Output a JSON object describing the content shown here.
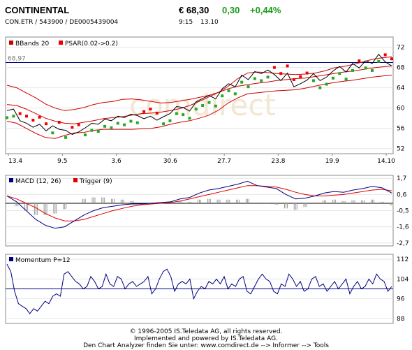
{
  "header": {
    "name": "CONTINENTAL",
    "price": "€ 68,30",
    "change_abs": "0,30",
    "change_pct": "+0,44%",
    "ids": "CON.ETR  /  543900  /  DE0005439004",
    "time": "9:15",
    "date": "13.10"
  },
  "footer": {
    "line1": "© 1996-2005 IS.Teledata AG, all rights reserved.",
    "line2": "Implemented and powered by IS.Teledata AG.",
    "line3": "Den Chart Analyzer finden Sie unter: www.comdirect.de --> Informer --> Tools"
  },
  "watermark": "comdirect",
  "colors": {
    "bbands": "#cc0000",
    "psar_up": "#22aa22",
    "psar_down": "#ee0000",
    "line": "#000000",
    "macd": "#000080",
    "trigger": "#dd0000",
    "momentum": "#000080",
    "hist": "#999999",
    "green": "#1a9a1a"
  },
  "chart_data": [
    {
      "type": "line",
      "legend": [
        "BBands 20",
        "PSAR(0.02->0.2)"
      ],
      "reference_label": "68,97",
      "reference_value": 68.97,
      "x_ticks": [
        "13.4",
        "9.5",
        "3.6",
        "30.6",
        "27.7",
        "23.8",
        "19.9",
        "14.10"
      ],
      "y_ticks": [
        52,
        56,
        60,
        64,
        68,
        72
      ],
      "ylim": [
        51,
        74
      ],
      "price": [
        59.5,
        59.8,
        57.5,
        57,
        56.2,
        56.8,
        55.5,
        56.5,
        55.8,
        55.6,
        54.8,
        55.3,
        56.1,
        57,
        56.8,
        57.8,
        57.5,
        58.4,
        58.1,
        58.8,
        58.5,
        57.9,
        58.4,
        57.6,
        58.3,
        58.9,
        60.3,
        60.1,
        59.4,
        61.2,
        61.9,
        62.5,
        61.8,
        63.8,
        64.8,
        64.2,
        66.5,
        65.6,
        67.2,
        66.8,
        67.5,
        66.6,
        65.4,
        66.9,
        64.2,
        64.8,
        65.5,
        66.8,
        65.4,
        66.1,
        67.3,
        68.2,
        67.1,
        68.8,
        67.9,
        69.3,
        68.8,
        70.6,
        69.1,
        68.3
      ],
      "upper_band": [
        64.5,
        64,
        63,
        62,
        60.8,
        60,
        59.5,
        59.7,
        60.1,
        60.7,
        61.1,
        61.3,
        61.7,
        61.8,
        61.6,
        61.3,
        61,
        61.1,
        61.4,
        61.7,
        62.1,
        62.5,
        63.1,
        64.3,
        65.8,
        66.9,
        67.1,
        67,
        66.8,
        66.7,
        66.6,
        66.7,
        66.9,
        67.3,
        67.9,
        68.2,
        68.6,
        69.1,
        69.6,
        69.9,
        70.1
      ],
      "middle_band": [
        60.7,
        60.5,
        59.8,
        58.9,
        58,
        57.4,
        57,
        56.9,
        57.2,
        57.5,
        57.9,
        58.1,
        58.3,
        58.6,
        58.9,
        59,
        59.2,
        59.5,
        59.9,
        60.5,
        61.3,
        62.2,
        63.1,
        63.8,
        64.3,
        64.6,
        64.9,
        65.1,
        65.4,
        65.6,
        65.8,
        65.9,
        66.2,
        66.5,
        66.8,
        67.1,
        67.3,
        67.6,
        67.9,
        68.1,
        68.3
      ],
      "lower_band": [
        57.4,
        57,
        56,
        55,
        54.2,
        54,
        54.6,
        55.1,
        55.2,
        55.6,
        55.8,
        55.8,
        55.8,
        55.8,
        55.9,
        56,
        56.3,
        56.8,
        57.2,
        57.5,
        58,
        58.6,
        59.6,
        61,
        62,
        62.8,
        63,
        63.2,
        63.4,
        63.5,
        63.6,
        63.9,
        64.3,
        64.7,
        65,
        65.3,
        65.5,
        65.8,
        66.1,
        66.3,
        66.5
      ]
    },
    {
      "type": "line",
      "legend": [
        "MACD (12, 26)",
        "Trigger (9)"
      ],
      "y_ticks": [
        1.7,
        0.6,
        -0.5,
        -1.6,
        -2.7
      ],
      "ylim": [
        -2.9,
        1.9
      ],
      "macd": [
        0.5,
        0.1,
        -0.5,
        -1.1,
        -1.5,
        -1.7,
        -1.6,
        -1.2,
        -0.8,
        -0.5,
        -0.3,
        -0.2,
        -0.1,
        -0.05,
        -0.05,
        0,
        0.05,
        0.1,
        0.3,
        0.4,
        0.7,
        0.9,
        1,
        1.15,
        1.3,
        1.5,
        1.2,
        1.1,
        1,
        0.6,
        0.3,
        0.35,
        0.5,
        0.7,
        0.8,
        0.75,
        0.9,
        1,
        1.15,
        1.05,
        0.7
      ],
      "trigger": [
        0.5,
        0.3,
        0,
        -0.3,
        -0.7,
        -1,
        -1.2,
        -1.2,
        -1.1,
        -0.9,
        -0.7,
        -0.5,
        -0.35,
        -0.2,
        -0.1,
        -0.05,
        0,
        0.05,
        0.15,
        0.3,
        0.45,
        0.6,
        0.75,
        0.9,
        1.05,
        1.2,
        1.2,
        1.15,
        1.1,
        0.95,
        0.75,
        0.6,
        0.5,
        0.5,
        0.55,
        0.6,
        0.7,
        0.8,
        0.9,
        0.95,
        0.85
      ],
      "histogram": [
        0,
        -0.2,
        -0.5,
        -0.8,
        -0.8,
        -0.7,
        -0.4,
        0,
        0.3,
        0.4,
        0.4,
        0.3,
        0.25,
        0.15,
        0.05,
        0.05,
        0.05,
        0.05,
        0.15,
        0.1,
        0.25,
        0.3,
        0.25,
        0.25,
        0.25,
        0.3,
        0,
        -0.05,
        -0.1,
        -0.35,
        -0.45,
        -0.25,
        0,
        0.2,
        0.25,
        0.15,
        0.2,
        0.2,
        0.25,
        0.1,
        -0.15
      ]
    },
    {
      "type": "line",
      "legend": [
        "Momentum P=12"
      ],
      "reference_value": 100,
      "y_ticks": [
        112,
        104,
        96,
        88
      ],
      "ylim": [
        86,
        114
      ],
      "momentum": [
        110,
        107,
        99,
        94,
        93,
        92,
        90,
        92,
        91,
        93,
        95,
        94,
        97,
        98,
        97,
        106,
        107,
        105,
        103,
        102,
        100,
        101,
        105,
        103,
        100,
        101,
        106,
        102,
        101,
        105,
        104,
        100,
        102,
        103,
        101,
        102,
        103,
        105,
        98,
        100,
        104,
        107,
        108,
        105,
        99,
        102,
        103,
        102,
        104,
        96,
        99,
        101,
        100,
        103,
        102,
        104,
        102,
        105,
        100,
        102,
        101,
        104,
        105,
        99,
        98,
        101,
        104,
        106,
        104,
        103,
        99,
        98,
        102,
        101,
        106,
        104,
        101,
        103,
        99,
        100,
        104,
        105,
        101,
        102,
        99,
        101,
        103,
        100,
        102,
        104,
        98,
        101,
        103,
        100,
        101,
        104,
        102,
        106,
        104,
        103,
        99,
        101
      ]
    }
  ]
}
